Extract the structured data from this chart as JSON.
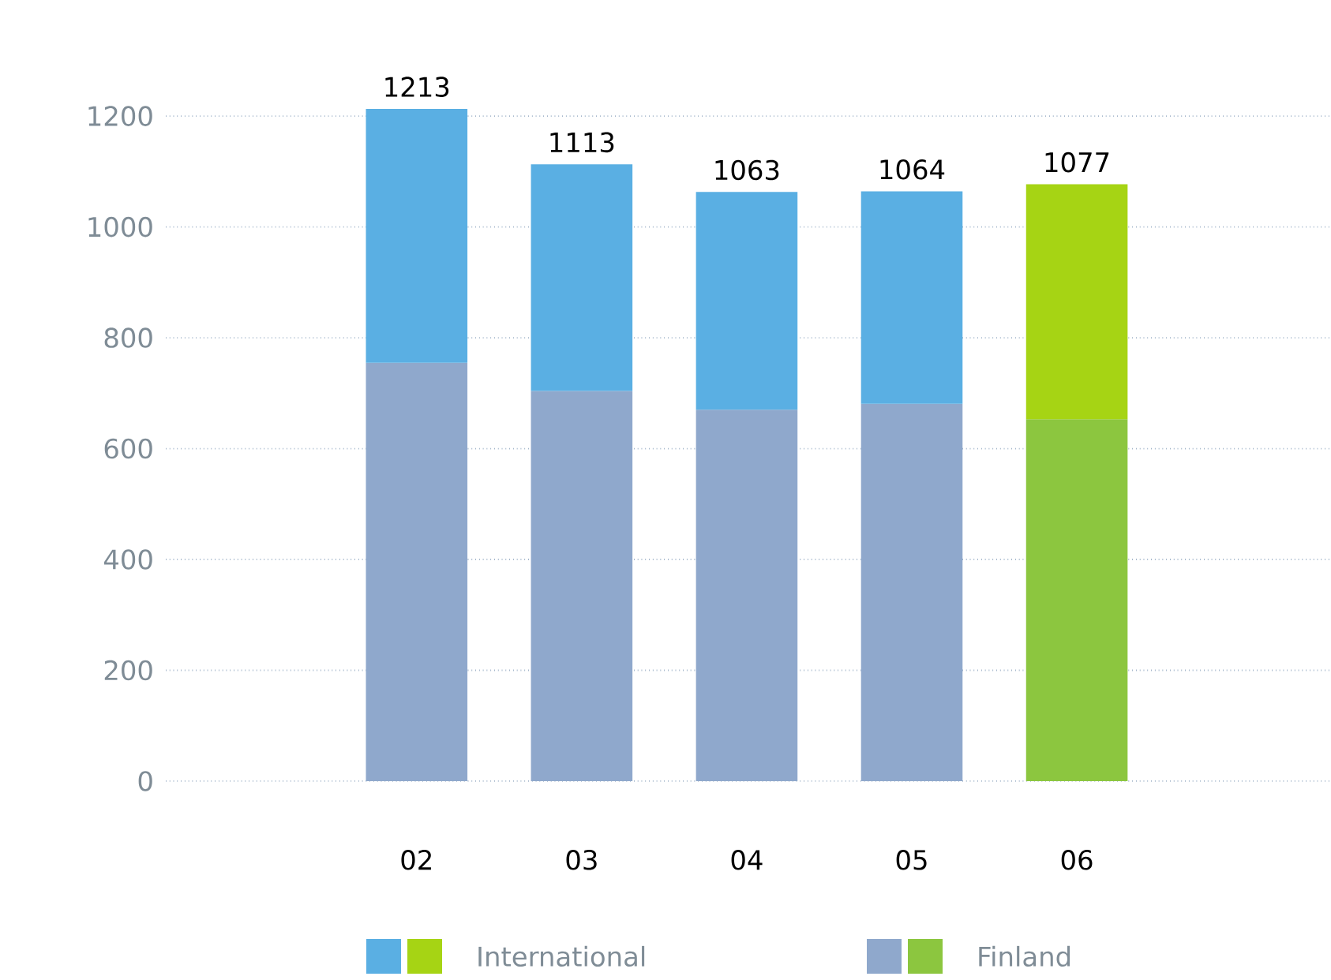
{
  "chart_data": {
    "type": "bar",
    "stacked": true,
    "categories": [
      "02",
      "03",
      "04",
      "05",
      "06"
    ],
    "series": [
      {
        "name": "Finland",
        "color": "#8fa8cc",
        "colors": [
          "#8fa8cc",
          "#8fa8cc",
          "#8fa8cc",
          "#8fa8cc",
          "#8cc63f"
        ],
        "values": [
          755,
          704,
          670,
          681,
          653
        ]
      },
      {
        "name": "International",
        "color": "#5aafe3",
        "colors": [
          "#5aafe3",
          "#5aafe3",
          "#5aafe3",
          "#5aafe3",
          "#a6d414"
        ],
        "values": [
          458,
          409,
          393,
          383,
          424
        ]
      }
    ],
    "totals": [
      "1213",
      "1113",
      "1063",
      "1064",
      "1077"
    ],
    "ylim": [
      0,
      1213
    ],
    "yticks": [
      0,
      200,
      400,
      600,
      800,
      1000,
      1200
    ],
    "grid": "y",
    "legend": "bottom"
  }
}
